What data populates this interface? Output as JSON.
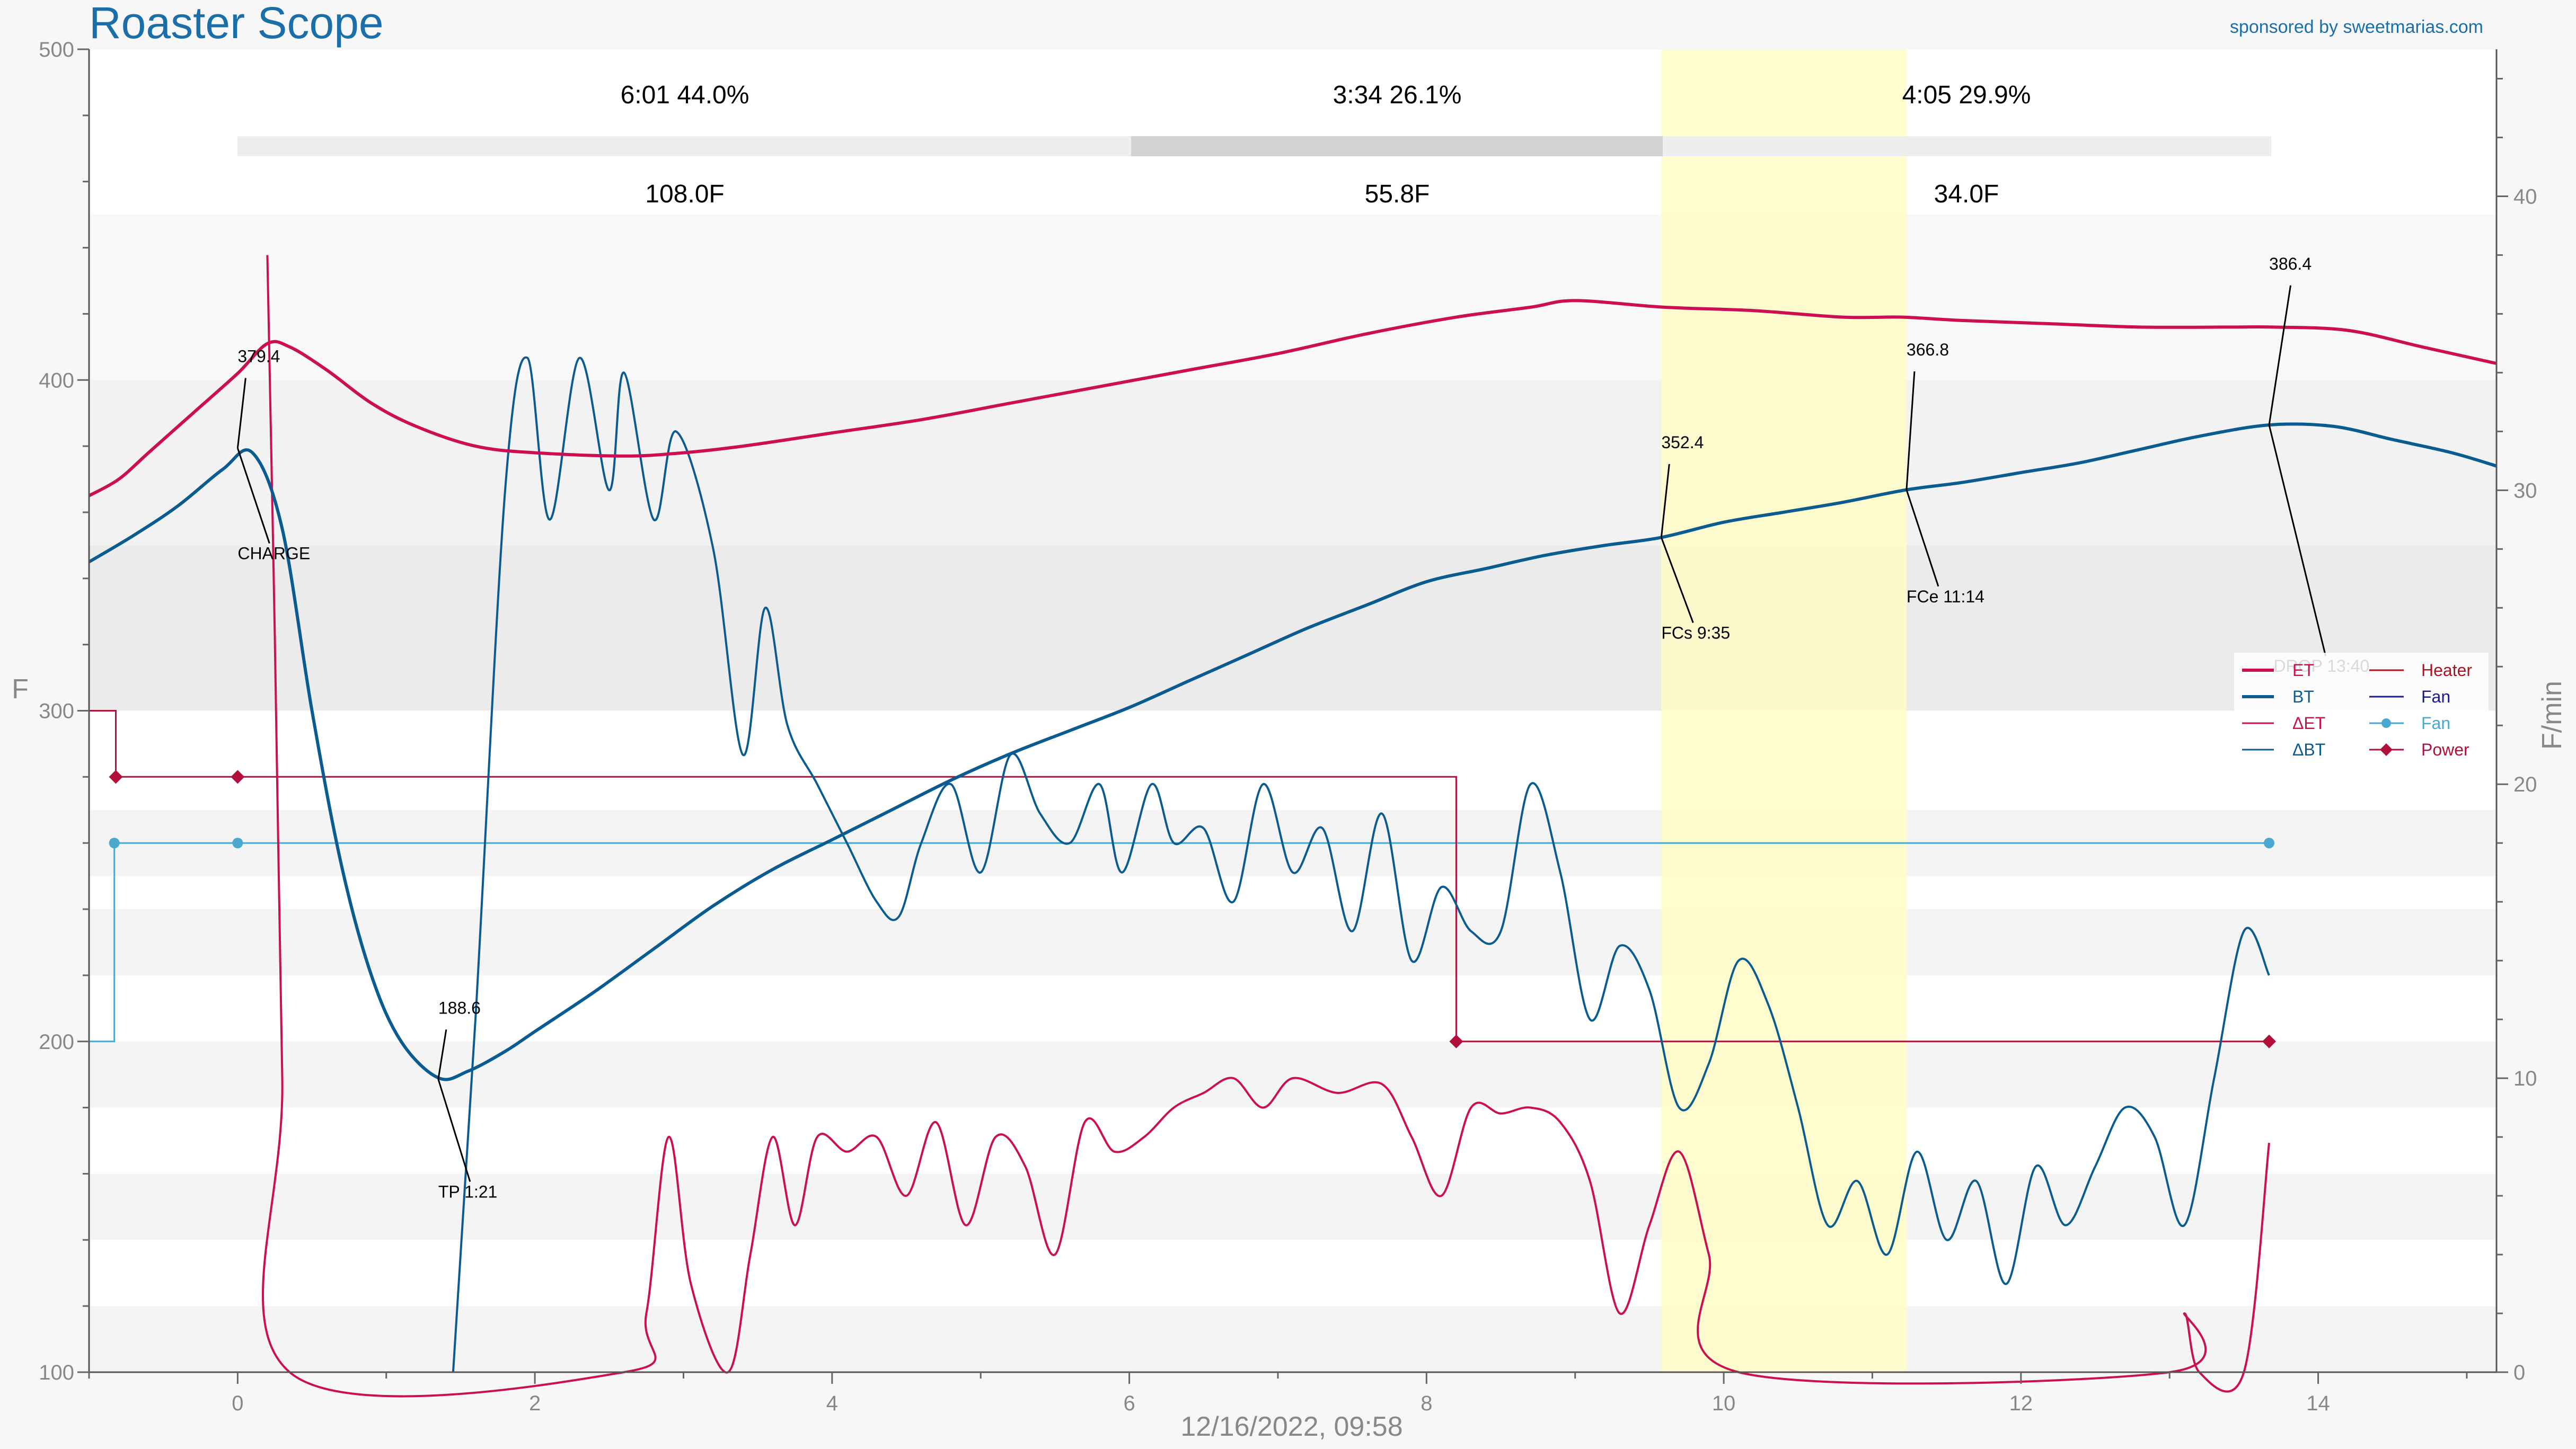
{
  "title": "Roaster Scope",
  "sponsor": "sponsored by sweetmarias.com",
  "colors": {
    "et": "#cc0f50",
    "bt": "#0a5c90",
    "fan": "#4aa8d0",
    "power": "#b0103a",
    "fan_legend": "#1a1a8a",
    "heater_legend": "#b01020",
    "highlight": "#fffcc8"
  },
  "phases": [
    {
      "time": "6:01",
      "pct": "44.0%",
      "delta": "108.0F"
    },
    {
      "time": "3:34",
      "pct": "26.1%",
      "delta": "55.8F"
    },
    {
      "time": "4:05",
      "pct": "29.9%",
      "delta": "34.0F"
    }
  ],
  "events": [
    {
      "label": "CHARGE",
      "temp": "379.4"
    },
    {
      "label": "TP 1:21",
      "temp": "188.6"
    },
    {
      "label": "FCs 9:35",
      "temp": "352.4"
    },
    {
      "label": "FCe 11:14",
      "temp": "366.8"
    },
    {
      "label": "DROP 13:40",
      "temp": "386.4"
    }
  ],
  "chart_data": {
    "type": "line",
    "xlabel": "12/16/2022, 09:58",
    "ylabel": "F",
    "ylabel_right": "F/min",
    "xlim": [
      -1,
      15.2
    ],
    "ylim": [
      100,
      500
    ],
    "ylim_right": [
      0,
      45
    ],
    "x_ticks": [
      0,
      2,
      4,
      6,
      8,
      10,
      12,
      14
    ],
    "y_ticks": [
      100,
      200,
      300,
      400,
      500
    ],
    "y_ticks_right": [
      0,
      10,
      20,
      30,
      40
    ],
    "legend_position": "right",
    "legend": [
      "ET",
      "BT",
      "ΔET",
      "ΔBT",
      "Heater",
      "Fan",
      "Fan",
      "Power"
    ],
    "highlight_x": [
      9.58,
      11.23
    ],
    "series": [
      {
        "name": "ET",
        "axis": "left",
        "points": [
          [
            -1,
            365
          ],
          [
            -0.8,
            370
          ],
          [
            -0.6,
            378
          ],
          [
            -0.3,
            390
          ],
          [
            0,
            402
          ],
          [
            0.2,
            411
          ],
          [
            0.35,
            410
          ],
          [
            0.6,
            403
          ],
          [
            0.9,
            393
          ],
          [
            1.2,
            386
          ],
          [
            1.6,
            380
          ],
          [
            2,
            378
          ],
          [
            2.6,
            377
          ],
          [
            3,
            378
          ],
          [
            3.4,
            380
          ],
          [
            4,
            384
          ],
          [
            4.6,
            388
          ],
          [
            5.2,
            393
          ],
          [
            5.8,
            398
          ],
          [
            6.4,
            403
          ],
          [
            7,
            408
          ],
          [
            7.6,
            414
          ],
          [
            8.2,
            419
          ],
          [
            8.7,
            422
          ],
          [
            9,
            424
          ],
          [
            9.6,
            422
          ],
          [
            10.2,
            421
          ],
          [
            10.8,
            419
          ],
          [
            11.2,
            419
          ],
          [
            11.6,
            418
          ],
          [
            12.2,
            417
          ],
          [
            12.8,
            416
          ],
          [
            13.4,
            416
          ],
          [
            13.7,
            416
          ],
          [
            14.2,
            415
          ],
          [
            14.7,
            410
          ],
          [
            15.2,
            405
          ]
        ]
      },
      {
        "name": "BT",
        "axis": "left",
        "points": [
          [
            -1,
            345
          ],
          [
            -0.7,
            353
          ],
          [
            -0.4,
            362
          ],
          [
            -0.1,
            373
          ],
          [
            0.1,
            378
          ],
          [
            0.3,
            355
          ],
          [
            0.5,
            300
          ],
          [
            0.7,
            253
          ],
          [
            0.9,
            220
          ],
          [
            1.1,
            200
          ],
          [
            1.35,
            189
          ],
          [
            1.55,
            191
          ],
          [
            1.8,
            197
          ],
          [
            2,
            203
          ],
          [
            2.4,
            215
          ],
          [
            2.8,
            228
          ],
          [
            3.2,
            241
          ],
          [
            3.6,
            252
          ],
          [
            4,
            261
          ],
          [
            4.4,
            270
          ],
          [
            4.8,
            279
          ],
          [
            5.2,
            287
          ],
          [
            5.6,
            294
          ],
          [
            6,
            301
          ],
          [
            6.4,
            309
          ],
          [
            6.8,
            317
          ],
          [
            7.2,
            325
          ],
          [
            7.6,
            332
          ],
          [
            8,
            339
          ],
          [
            8.4,
            343
          ],
          [
            8.8,
            347
          ],
          [
            9.2,
            350
          ],
          [
            9.58,
            352.4
          ],
          [
            10,
            357
          ],
          [
            10.4,
            360
          ],
          [
            10.8,
            363
          ],
          [
            11.23,
            366.8
          ],
          [
            11.6,
            369
          ],
          [
            12,
            372
          ],
          [
            12.4,
            375
          ],
          [
            12.8,
            379
          ],
          [
            13.2,
            383
          ],
          [
            13.67,
            386.4
          ],
          [
            14.1,
            386
          ],
          [
            14.5,
            382
          ],
          [
            14.9,
            378
          ],
          [
            15.2,
            374
          ]
        ]
      },
      {
        "name": "ΔET",
        "axis": "right",
        "points": [
          [
            0.2,
            38
          ],
          [
            0.25,
            25
          ],
          [
            0.3,
            10
          ],
          [
            0.35,
            0
          ],
          [
            2.6,
            0
          ],
          [
            2.75,
            2
          ],
          [
            2.9,
            8
          ],
          [
            3.05,
            3
          ],
          [
            3.3,
            0
          ],
          [
            3.45,
            4
          ],
          [
            3.6,
            8
          ],
          [
            3.75,
            5
          ],
          [
            3.9,
            8
          ],
          [
            4.1,
            7.5
          ],
          [
            4.3,
            8
          ],
          [
            4.5,
            6
          ],
          [
            4.7,
            8.5
          ],
          [
            4.9,
            5
          ],
          [
            5.1,
            8
          ],
          [
            5.3,
            7
          ],
          [
            5.5,
            4
          ],
          [
            5.7,
            8.5
          ],
          [
            5.9,
            7.5
          ],
          [
            6.1,
            8
          ],
          [
            6.3,
            9
          ],
          [
            6.5,
            9.5
          ],
          [
            6.7,
            10
          ],
          [
            6.9,
            9
          ],
          [
            7.1,
            10
          ],
          [
            7.4,
            9.5
          ],
          [
            7.7,
            9.8
          ],
          [
            7.9,
            8
          ],
          [
            8.1,
            6
          ],
          [
            8.3,
            9
          ],
          [
            8.5,
            8.8
          ],
          [
            8.7,
            9
          ],
          [
            8.9,
            8.5
          ],
          [
            9.1,
            6.5
          ],
          [
            9.3,
            2
          ],
          [
            9.5,
            5
          ],
          [
            9.7,
            7.5
          ],
          [
            9.9,
            4
          ],
          [
            10.1,
            0
          ],
          [
            13,
            0
          ],
          [
            13.1,
            2
          ],
          [
            13.2,
            0
          ],
          [
            13.5,
            0
          ],
          [
            13.67,
            7.8
          ]
        ]
      },
      {
        "name": "ΔBT",
        "axis": "right",
        "points": [
          [
            1.45,
            0
          ],
          [
            1.6,
            12
          ],
          [
            1.8,
            30
          ],
          [
            1.95,
            34.5
          ],
          [
            2.1,
            29
          ],
          [
            2.3,
            34.5
          ],
          [
            2.5,
            30
          ],
          [
            2.6,
            34
          ],
          [
            2.8,
            29
          ],
          [
            2.95,
            32
          ],
          [
            3.2,
            28
          ],
          [
            3.4,
            21
          ],
          [
            3.55,
            26
          ],
          [
            3.7,
            22
          ],
          [
            3.9,
            20
          ],
          [
            4.1,
            18
          ],
          [
            4.3,
            16
          ],
          [
            4.45,
            15.5
          ],
          [
            4.6,
            18
          ],
          [
            4.8,
            20
          ],
          [
            5,
            17
          ],
          [
            5.2,
            21
          ],
          [
            5.4,
            19
          ],
          [
            5.6,
            18
          ],
          [
            5.8,
            20
          ],
          [
            5.95,
            17
          ],
          [
            6.15,
            20
          ],
          [
            6.3,
            18
          ],
          [
            6.5,
            18.5
          ],
          [
            6.7,
            16
          ],
          [
            6.9,
            20
          ],
          [
            7.1,
            17
          ],
          [
            7.3,
            18.5
          ],
          [
            7.5,
            15
          ],
          [
            7.7,
            19
          ],
          [
            7.9,
            14
          ],
          [
            8.1,
            16.5
          ],
          [
            8.3,
            15
          ],
          [
            8.5,
            15
          ],
          [
            8.7,
            20
          ],
          [
            8.9,
            17
          ],
          [
            9.1,
            12
          ],
          [
            9.3,
            14.5
          ],
          [
            9.5,
            13
          ],
          [
            9.7,
            9
          ],
          [
            9.9,
            10.5
          ],
          [
            10.1,
            14
          ],
          [
            10.3,
            12.5
          ],
          [
            10.5,
            9
          ],
          [
            10.7,
            5
          ],
          [
            10.9,
            6.5
          ],
          [
            11.1,
            4
          ],
          [
            11.3,
            7.5
          ],
          [
            11.5,
            4.5
          ],
          [
            11.7,
            6.5
          ],
          [
            11.9,
            3
          ],
          [
            12.1,
            7
          ],
          [
            12.3,
            5
          ],
          [
            12.5,
            7
          ],
          [
            12.7,
            9
          ],
          [
            12.9,
            8
          ],
          [
            13.1,
            5
          ],
          [
            13.3,
            10
          ],
          [
            13.5,
            15
          ],
          [
            13.67,
            13.5
          ]
        ]
      },
      {
        "name": "Heater",
        "axis": "left",
        "points": [
          [
            -1,
            300
          ],
          [
            -0.82,
            300
          ],
          [
            -0.82,
            280
          ],
          [
            0,
            280
          ],
          [
            8.2,
            280
          ],
          [
            8.2,
            200
          ],
          [
            13.67,
            200
          ]
        ]
      },
      {
        "name": "Fan",
        "axis": "left",
        "points": [
          [
            -1,
            200
          ],
          [
            -0.83,
            200
          ],
          [
            -0.83,
            260
          ],
          [
            0,
            260
          ],
          [
            13.67,
            260
          ]
        ]
      },
      {
        "name": "Power",
        "axis": "left",
        "points": [
          [
            -0.82,
            280
          ],
          [
            0,
            280
          ],
          [
            8.2,
            200
          ],
          [
            13.67,
            200
          ]
        ]
      }
    ]
  }
}
